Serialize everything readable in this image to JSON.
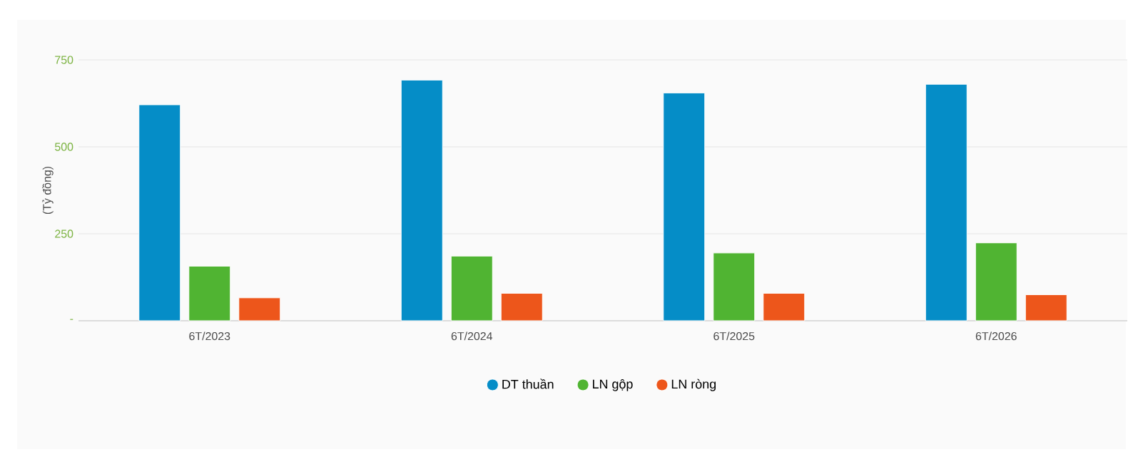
{
  "chart_data": {
    "type": "bar",
    "ylabel": "(Tỷ đồng)",
    "categories": [
      "6T/2023",
      "6T/2024",
      "6T/2025",
      "6T/2026"
    ],
    "series": [
      {
        "name": "DT thuần",
        "color": "#058dc7",
        "values": [
          621,
          692,
          655,
          680
        ]
      },
      {
        "name": "LN gộp",
        "color": "#50b432",
        "values": [
          157,
          186,
          195,
          224
        ]
      },
      {
        "name": "LN ròng",
        "color": "#ed561b",
        "values": [
          66,
          79,
          79,
          75
        ]
      }
    ],
    "ylim": [
      0,
      750
    ],
    "yticks": [
      {
        "value": 0,
        "label": "-"
      },
      250,
      500,
      750
    ],
    "grid": "y",
    "legend": "bottom"
  }
}
